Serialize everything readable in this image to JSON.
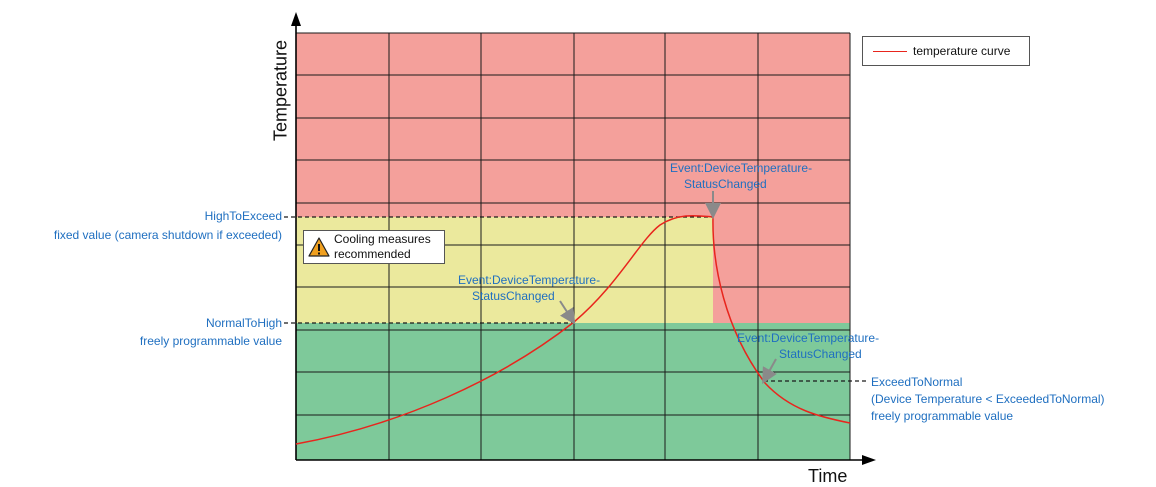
{
  "axes": {
    "y_title": "Temperature",
    "x_title": "Time"
  },
  "legend": {
    "label": "temperature curve",
    "color": "#e8251d"
  },
  "zones": {
    "high_color": "#f4a09b",
    "warning_color": "#ebe99d",
    "normal_color": "#7ec99a"
  },
  "thresholds": {
    "high_to_exceed": {
      "name": "HighToExceed",
      "desc": "fixed value (camera shutdown if exceeded)"
    },
    "normal_to_high": {
      "name": "NormalToHigh",
      "desc": "freely programmable value"
    },
    "exceed_to_normal": {
      "name": "ExceedToNormal",
      "line1": "(Device Temperature < ExceededToNormal)",
      "line2": "freely programmable value"
    }
  },
  "warning_note": {
    "line1": "Cooling measures",
    "line2": "recommended",
    "icon": "warning-triangle-icon"
  },
  "events": [
    {
      "line1": "Event:DeviceTemperature-",
      "line2": "StatusChanged"
    },
    {
      "line1": "Event:DeviceTemperature-",
      "line2": "StatusChanged"
    },
    {
      "line1": "Event:DeviceTemperature-",
      "line2": "StatusChanged"
    }
  ]
}
